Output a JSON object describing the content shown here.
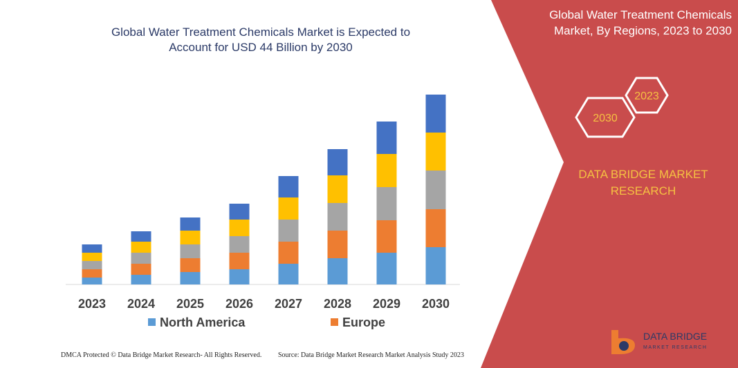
{
  "chart_data": {
    "type": "bar",
    "stacked": true,
    "title": "Global Water Treatment Chemicals Market is Expected to Account for USD 44 Billion by 2030",
    "categories": [
      "2023",
      "2024",
      "2025",
      "2026",
      "2027",
      "2028",
      "2029",
      "2030"
    ],
    "series": [
      {
        "name": "North America",
        "color": "#5b9bd5",
        "values": [
          10,
          14,
          18,
          22,
          30,
          38,
          46,
          54
        ]
      },
      {
        "name": "Europe",
        "color": "#ed7d31",
        "values": [
          12,
          16,
          20,
          24,
          32,
          40,
          47,
          55
        ]
      },
      {
        "color": "#a5a5a5",
        "values": [
          12,
          16,
          20,
          24,
          32,
          40,
          48,
          56
        ]
      },
      {
        "color": "#ffc000",
        "values": [
          12,
          16,
          20,
          24,
          32,
          40,
          48,
          55
        ]
      },
      {
        "color": "#4472c4",
        "values": [
          12,
          15,
          19,
          23,
          31,
          38,
          47,
          55
        ]
      }
    ]
  },
  "panel": {
    "title": "Global Water Treatment Chemicals Market, By Regions, 2023 to 2030",
    "hexagons": [
      "2023",
      "2030"
    ],
    "brand": "DATA BRIDGE MARKET RESEARCH"
  },
  "logo": {
    "name": "DATA BRIDGE",
    "tagline": "MARKET RESEARCH"
  },
  "footer": {
    "copyright": "DMCA Protected © Data Bridge Market Research- All Rights Reserved.",
    "source": "Source: Data Bridge Market Research  Market Analysis Study 2023"
  }
}
